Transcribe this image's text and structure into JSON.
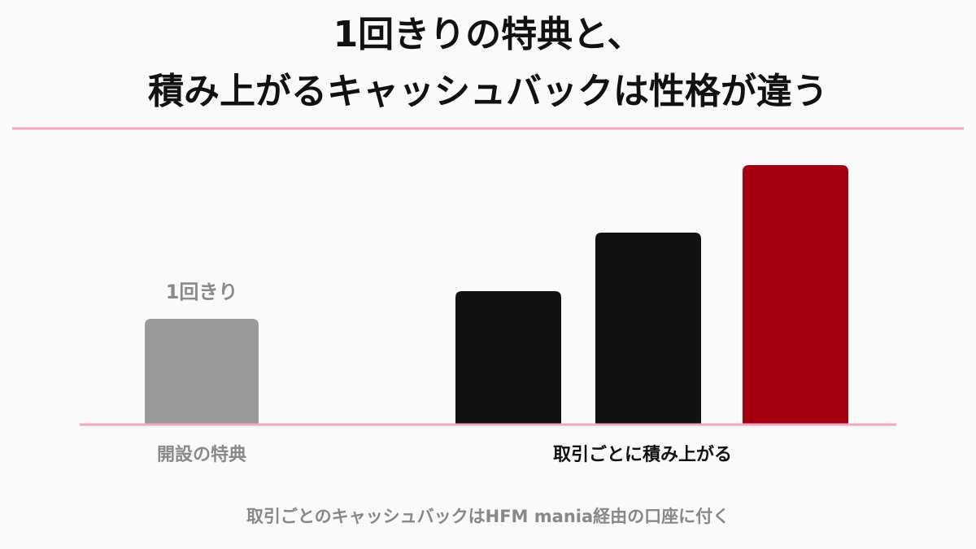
{
  "chart_data": {
    "type": "bar",
    "title": [
      "1回きりの特典と、",
      "積み上がるキャッシュバックは性格が違う"
    ],
    "groups": [
      {
        "label": "開設の特典",
        "annotation": "1回きり",
        "label_color": "#8a8a8a",
        "values": [
          130
        ],
        "colors": [
          "#999999"
        ]
      },
      {
        "label": "取引ごとに積み上がる",
        "label_color": "#111111",
        "values": [
          164,
          236,
          319
        ],
        "colors": [
          "#111111",
          "#111111",
          "#a50010"
        ]
      }
    ],
    "ylim": [
      0,
      330
    ],
    "footnote": "取引ごとのキャッシュバックはHFM mania経由の口座に付く"
  }
}
